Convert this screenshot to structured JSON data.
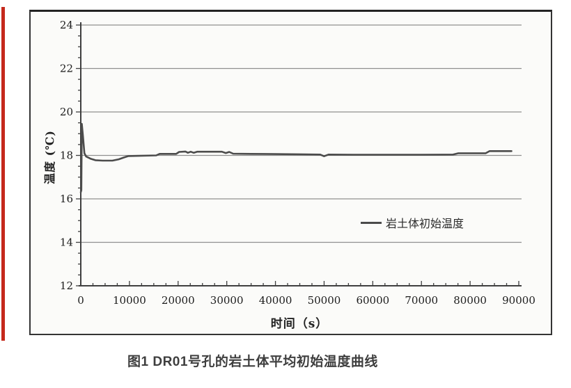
{
  "page": {
    "background": "#ffffff",
    "accent_stripe_color": "#c5291c"
  },
  "figure": {
    "caption": "图1 DR01号孔的岩土体平均初始温度曲线"
  },
  "chart_data": {
    "type": "line",
    "title": "",
    "xlabel": "时间（s）",
    "ylabel": "温度 (℃)",
    "xlim": [
      0,
      90000
    ],
    "ylim": [
      12,
      24
    ],
    "x_ticks": [
      0,
      10000,
      20000,
      30000,
      40000,
      50000,
      60000,
      70000,
      80000,
      90000
    ],
    "x_tick_labels": [
      "0",
      "10000",
      "20000",
      "30000",
      "40000",
      "50000",
      "60000",
      "70000",
      "80000",
      "90000"
    ],
    "y_ticks": [
      12,
      14,
      16,
      18,
      20,
      22,
      24
    ],
    "y_tick_labels": [
      "12",
      "14",
      "16",
      "18",
      "20",
      "22",
      "24"
    ],
    "x_minor_step": 2500,
    "y_minor_step": 0.5,
    "grid": "horizontal-only",
    "legend": {
      "position": "inside-right",
      "entries": [
        {
          "label": "岩土体初始温度",
          "color": "#4a4a4a"
        }
      ]
    },
    "series": [
      {
        "name": "岩土体初始温度",
        "color": "#4c4c4c",
        "points": [
          [
            0,
            16.3
          ],
          [
            120,
            16.4
          ],
          [
            220,
            19.45
          ],
          [
            450,
            18.9
          ],
          [
            750,
            18.1
          ],
          [
            1100,
            17.95
          ],
          [
            2000,
            17.85
          ],
          [
            3000,
            17.78
          ],
          [
            4500,
            17.76
          ],
          [
            6500,
            17.76
          ],
          [
            7800,
            17.82
          ],
          [
            8800,
            17.9
          ],
          [
            9800,
            17.97
          ],
          [
            12000,
            17.98
          ],
          [
            15500,
            18.0
          ],
          [
            16200,
            18.07
          ],
          [
            19600,
            18.07
          ],
          [
            20200,
            18.16
          ],
          [
            21500,
            18.18
          ],
          [
            22000,
            18.12
          ],
          [
            22600,
            18.17
          ],
          [
            23200,
            18.12
          ],
          [
            23900,
            18.17
          ],
          [
            29000,
            18.17
          ],
          [
            29800,
            18.11
          ],
          [
            30500,
            18.16
          ],
          [
            31300,
            18.08
          ],
          [
            35000,
            18.07
          ],
          [
            40000,
            18.06
          ],
          [
            45000,
            18.05
          ],
          [
            49200,
            18.04
          ],
          [
            50000,
            17.96
          ],
          [
            50900,
            18.04
          ],
          [
            56000,
            18.03
          ],
          [
            62000,
            18.03
          ],
          [
            70000,
            18.03
          ],
          [
            76500,
            18.04
          ],
          [
            77600,
            18.1
          ],
          [
            83200,
            18.1
          ],
          [
            84000,
            18.2
          ],
          [
            88500,
            18.2
          ]
        ]
      }
    ]
  },
  "colors": {
    "grid": "#8f8f8f",
    "axis": "#3f3f3f",
    "tick_label": "#1c1c1c",
    "frame_border": "#2b2b2b",
    "scan_bg": "#fbfbf9",
    "caption": "#3e3e3e",
    "legend_text": "#2b2b2b"
  }
}
